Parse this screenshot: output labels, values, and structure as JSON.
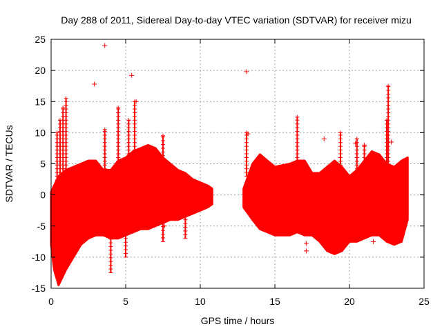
{
  "chart_data": {
    "type": "scatter",
    "title": "Day 288 of 2011, Sidereal Day-to-day VTEC variation (SDTVAR) for receiver mizu",
    "xlabel": "GPS time / hours",
    "ylabel": "SDTVAR / TECUs",
    "xlim": [
      0,
      25
    ],
    "ylim": [
      -15,
      25
    ],
    "xticks": [
      "0",
      "5",
      "10",
      "15",
      "20",
      "25"
    ],
    "yticks": [
      "-15",
      "-10",
      "-5",
      "0",
      "5",
      "10",
      "15",
      "20",
      "25"
    ],
    "grid": true,
    "marker": "+",
    "color": "#ff0000",
    "series": [
      {
        "name": "SDTVAR",
        "envelope": {
          "x": [
            0.0,
            0.2,
            0.5,
            1.0,
            1.5,
            2.0,
            2.5,
            3.0,
            3.5,
            4.0,
            4.5,
            5.0,
            5.5,
            6.0,
            6.5,
            7.0,
            7.5,
            8.0,
            8.5,
            9.0,
            9.5,
            10.0,
            10.5,
            10.8
          ],
          "upper": [
            0.5,
            1.5,
            3.0,
            4.0,
            4.5,
            5.0,
            5.5,
            5.5,
            4.0,
            4.0,
            5.5,
            6.0,
            7.0,
            7.5,
            8.0,
            7.5,
            6.0,
            5.0,
            4.0,
            3.5,
            2.5,
            2.0,
            1.5,
            1.0
          ],
          "lower": [
            -8,
            -12,
            -14.5,
            -12,
            -10,
            -8,
            -7,
            -6.5,
            -6.5,
            -7,
            -7,
            -6.5,
            -6.0,
            -5.5,
            -5.5,
            -5.0,
            -4.5,
            -4.0,
            -4.0,
            -3.5,
            -3.0,
            -2.5,
            -2.0,
            -1.5
          ]
        },
        "envelope2": {
          "x": [
            12.9,
            13.5,
            14.0,
            15.0,
            16.0,
            16.5,
            17.0,
            17.5,
            18.0,
            18.5,
            19.0,
            19.5,
            20.0,
            20.5,
            21.0,
            21.5,
            22.0,
            22.5,
            23.0,
            23.5,
            23.9
          ],
          "upper": [
            1.0,
            5.0,
            6.5,
            4.5,
            5.0,
            5.5,
            5.5,
            3.5,
            3.5,
            4.5,
            5.5,
            4.5,
            3.0,
            4.0,
            5.5,
            7.0,
            6.5,
            5.0,
            4.5,
            5.5,
            6.0
          ],
          "lower": [
            -2.0,
            -4.0,
            -5.5,
            -6.5,
            -6.5,
            -6.0,
            -6.5,
            -6.5,
            -7.5,
            -9.0,
            -9.5,
            -9.0,
            -7.5,
            -7.5,
            -7.0,
            -6.5,
            -6.5,
            -7.5,
            -8.0,
            -7.5,
            -4.0
          ]
        },
        "spikes": [
          {
            "x": 1.0,
            "low": -3,
            "high": 15.5
          },
          {
            "x": 0.8,
            "low": -3,
            "high": 14.0
          },
          {
            "x": 0.6,
            "low": -3,
            "high": 12.0
          },
          {
            "x": 0.4,
            "low": -3,
            "high": 10.0
          },
          {
            "x": 3.6,
            "low": 3,
            "high": 10.5
          },
          {
            "x": 4.5,
            "low": 3,
            "high": 14.0
          },
          {
            "x": 5.2,
            "low": 3,
            "high": 12.0
          },
          {
            "x": 5.6,
            "low": 3,
            "high": 15.0
          },
          {
            "x": 7.5,
            "low": -7.5,
            "high": 9.5
          },
          {
            "x": 9.0,
            "low": -7.0,
            "high": 1.0
          },
          {
            "x": 4.0,
            "low": -12.5,
            "high": -4.0
          },
          {
            "x": 5.0,
            "low": -10.0,
            "high": -4.0
          },
          {
            "x": 16.5,
            "low": 3,
            "high": 12.5
          },
          {
            "x": 19.4,
            "low": 3,
            "high": 10.0
          },
          {
            "x": 20.5,
            "low": 3,
            "high": 9.0
          },
          {
            "x": 21.0,
            "low": 3,
            "high": 8.0
          },
          {
            "x": 22.6,
            "low": 3,
            "high": 17.5
          },
          {
            "x": 22.5,
            "low": 3,
            "high": 12.0
          },
          {
            "x": 13.1,
            "low": 3,
            "high": 10.0
          }
        ],
        "outliers": [
          {
            "x": 3.6,
            "y": 24.0
          },
          {
            "x": 2.9,
            "y": 17.8
          },
          {
            "x": 5.4,
            "y": 19.2
          },
          {
            "x": 5.7,
            "y": 15.0
          },
          {
            "x": 13.1,
            "y": 19.8
          },
          {
            "x": 13.2,
            "y": 9.8
          },
          {
            "x": 17.1,
            "y": -7.8
          },
          {
            "x": 17.1,
            "y": -9.0
          },
          {
            "x": 18.3,
            "y": 9.0
          },
          {
            "x": 20.4,
            "y": 8.3
          },
          {
            "x": 21.0,
            "y": 8.0
          },
          {
            "x": 22.8,
            "y": 8.5
          },
          {
            "x": 21.6,
            "y": -7.5
          },
          {
            "x": 4.4,
            "y": -5.5
          },
          {
            "x": 7.6,
            "y": -5.0
          },
          {
            "x": 5.8,
            "y": -4.5
          }
        ]
      }
    ]
  }
}
